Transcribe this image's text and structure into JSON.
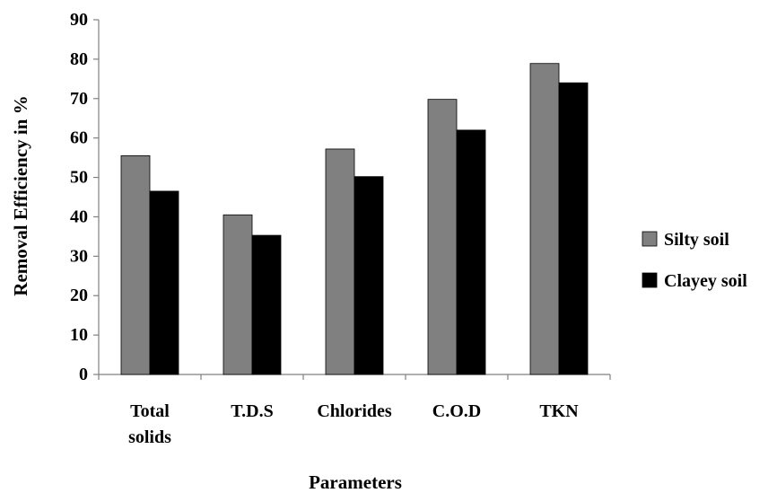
{
  "chart_data": {
    "type": "bar",
    "title": "",
    "xlabel": "Parameters",
    "ylabel": "Removal Efficiency in %",
    "ylim": [
      0,
      90
    ],
    "yticks": [
      0,
      10,
      20,
      30,
      40,
      50,
      60,
      70,
      80,
      90
    ],
    "categories": [
      [
        "Total",
        "solids"
      ],
      [
        "T.D.S"
      ],
      [
        "Chlorides"
      ],
      [
        "C.O.D"
      ],
      [
        "TKN"
      ]
    ],
    "series": [
      {
        "name": "Silty soil",
        "color": "#808080",
        "values": [
          55.5,
          40.5,
          57.2,
          69.8,
          78.9
        ]
      },
      {
        "name": "Clayey soil",
        "color": "#000000",
        "values": [
          46.5,
          35.3,
          50.2,
          62.0,
          74.0
        ]
      }
    ],
    "grid": false,
    "legend_position": "right"
  }
}
